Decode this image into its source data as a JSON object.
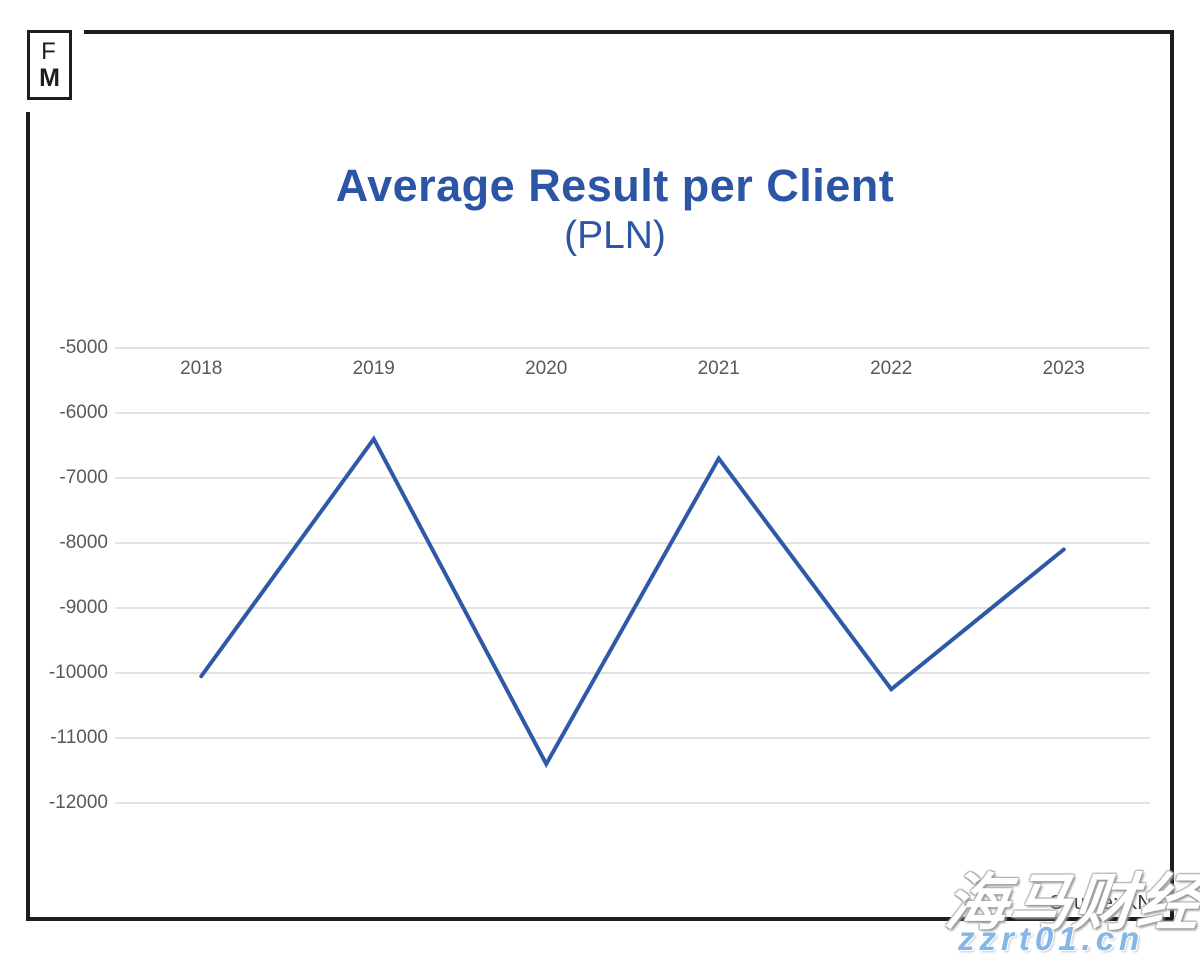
{
  "logo": {
    "line1": "F",
    "line2": "M"
  },
  "header": {
    "title": "Average Result per Client",
    "subtitle": "(PLN)"
  },
  "source_note": "Source: KNF",
  "watermark": {
    "cjk_text": "海马财经",
    "url_text": "zzrt01.cn"
  },
  "colors": {
    "title": "#2c55a5",
    "line": "#2e59a7",
    "grid": "#e3e3e3",
    "axis_text": "#595959",
    "frame": "#1d1d1d",
    "watermark_url": "#82b7e6"
  },
  "chart_data": {
    "type": "line",
    "title": "Average Result per Client",
    "subtitle": "(PLN)",
    "categories": [
      "2018",
      "2019",
      "2020",
      "2021",
      "2022",
      "2023"
    ],
    "values": [
      -10050,
      -6400,
      -11400,
      -6700,
      -10250,
      -8100
    ],
    "series_name": "Average result per client (PLN)",
    "ylim": [
      -12000,
      -5000
    ],
    "y_ticks": [
      -5000,
      -6000,
      -7000,
      -8000,
      -9000,
      -10000,
      -11000,
      -12000
    ],
    "xlabel": "",
    "ylabel": "",
    "grid": true,
    "legend": false,
    "line_width": 4
  }
}
